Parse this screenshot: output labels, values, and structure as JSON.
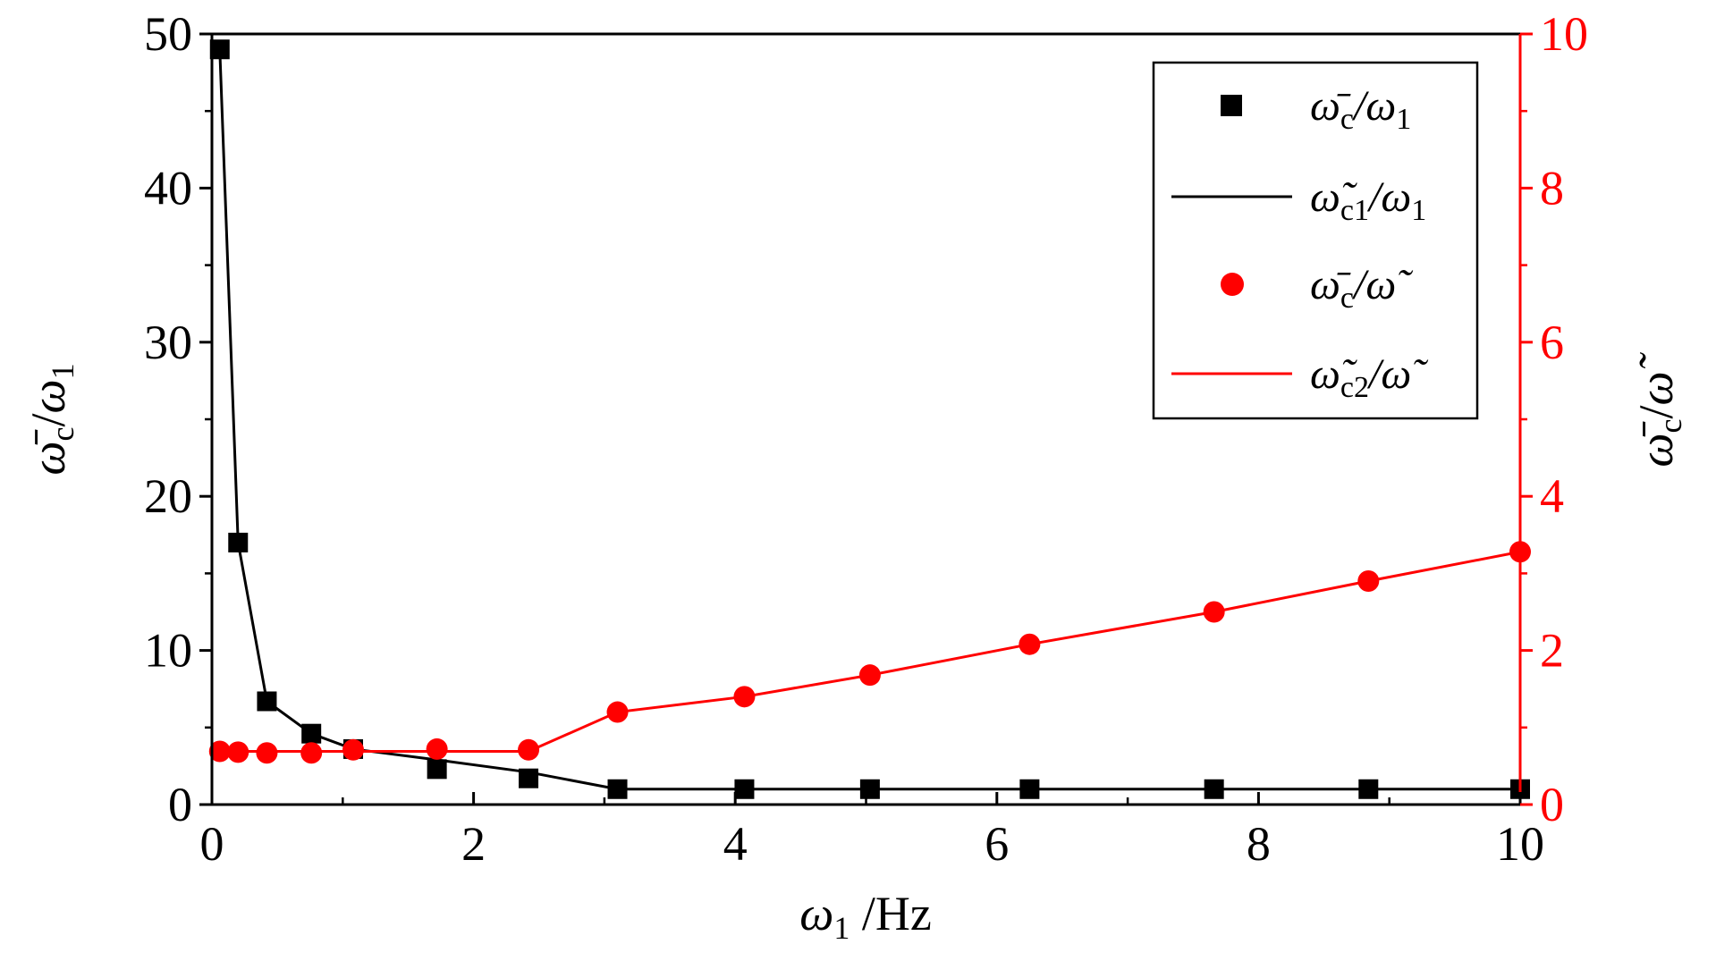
{
  "chart_data": {
    "type": "line",
    "x_axis": {
      "label_symbol": "ω",
      "label_sub": "1",
      "label_unit": " /Hz",
      "range": [
        0,
        10
      ],
      "ticks": [
        "0",
        "2",
        "4",
        "6",
        "8",
        "10"
      ]
    },
    "y_left": {
      "label_symbol": "ω̄",
      "label_sub": "c",
      "label_div": "/",
      "label_symbol2": "ω",
      "label_sub2": "1",
      "range": [
        0,
        50
      ],
      "ticks": [
        "0",
        "10",
        "20",
        "30",
        "40",
        "50"
      ],
      "color": "#000000"
    },
    "y_right": {
      "label_symbol": "ω̄",
      "label_sub": "c",
      "label_div": "/",
      "label_symbol2": "ω̃",
      "range": [
        0,
        10
      ],
      "ticks": [
        "0",
        "2",
        "4",
        "6",
        "8",
        "10"
      ],
      "color": "#ff0000"
    },
    "series": [
      {
        "name_main": "ω̄",
        "name_sub": "c",
        "name_rest": "/ω",
        "name_rest_sub": "1",
        "style": "square",
        "axis": "left",
        "color": "#000000",
        "x": [
          0.06,
          0.2,
          0.42,
          0.76,
          1.08,
          1.72,
          2.42,
          3.1,
          4.07,
          5.03,
          6.25,
          7.66,
          8.84,
          10.0
        ],
        "y": [
          49.0,
          17.0,
          6.7,
          4.6,
          3.6,
          2.3,
          1.7,
          1.0,
          1.0,
          1.0,
          1.0,
          1.0,
          1.0,
          1.0
        ]
      },
      {
        "name_main": "ω̃",
        "name_sub": "c1",
        "name_rest": "/ω",
        "name_rest_sub": "1",
        "style": "line",
        "axis": "left",
        "color": "#000000",
        "x": [
          0.06,
          0.2,
          0.42,
          0.76,
          1.08,
          1.72,
          2.42,
          3.1,
          4.07,
          5.03,
          6.25,
          7.66,
          8.84,
          10.0
        ],
        "y": [
          49.0,
          17.0,
          6.7,
          4.6,
          3.6,
          2.9,
          2.1,
          1.0,
          1.0,
          1.0,
          1.0,
          1.0,
          1.0,
          1.0
        ]
      },
      {
        "name_main": "ω̄",
        "name_sub": "c",
        "name_rest": "/ω̃",
        "name_rest_sub": "",
        "style": "circle",
        "axis": "right",
        "color": "#ff0000",
        "x": [
          0.06,
          0.2,
          0.42,
          0.76,
          1.08,
          1.72,
          2.42,
          3.1,
          4.07,
          5.03,
          6.25,
          7.66,
          8.84,
          10.0
        ],
        "y": [
          0.69,
          0.68,
          0.67,
          0.67,
          0.71,
          0.72,
          0.71,
          1.2,
          1.4,
          1.68,
          2.08,
          2.5,
          2.9,
          3.28
        ]
      },
      {
        "name_main": "ω̃",
        "name_sub": "c2",
        "name_rest": "/ω̃",
        "name_rest_sub": "",
        "style": "line",
        "axis": "right",
        "color": "#ff0000",
        "x": [
          0.06,
          0.2,
          0.42,
          0.76,
          1.08,
          1.72,
          2.42,
          3.1,
          4.07,
          5.03,
          6.25,
          7.66,
          8.84,
          10.0
        ],
        "y": [
          0.69,
          0.69,
          0.69,
          0.69,
          0.69,
          0.69,
          0.69,
          1.2,
          1.4,
          1.68,
          2.08,
          2.5,
          2.9,
          3.28
        ]
      }
    ],
    "legend_position": "top-right",
    "grid": false
  }
}
